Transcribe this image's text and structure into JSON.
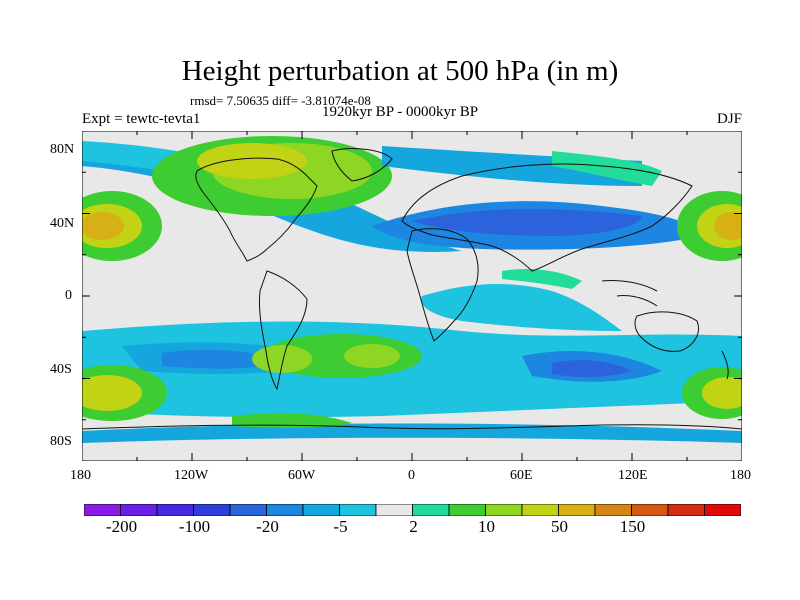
{
  "title": "Height perturbation at 500 hPa (in m)",
  "stats": "rmsd= 7.50635 diff= -3.81074e-08",
  "experiment": "Expt = tewtc-tevta1",
  "period": "1920kyr BP - 0000kyr BP",
  "season": "DJF",
  "lat_ticks": [
    "80N",
    "40N",
    "0",
    "40S",
    "80S"
  ],
  "lon_ticks": [
    "180",
    "120W",
    "60W",
    "0",
    "60E",
    "120E",
    "180"
  ],
  "colorbar": {
    "colors": [
      "#8a1ae6",
      "#6a1ee6",
      "#4a27e0",
      "#2e3fdc",
      "#2a63dc",
      "#1d86e0",
      "#14a6dc",
      "#1ec3e0",
      "#e8e8e8",
      "#22dc9a",
      "#3ecc33",
      "#8ed624",
      "#c2d214",
      "#d6b014",
      "#d68614",
      "#d45a14",
      "#d22e14",
      "#e00a0a"
    ],
    "labels": [
      "-200",
      "-100",
      "-20",
      "-5",
      "2",
      "10",
      "50",
      "150"
    ]
  }
}
